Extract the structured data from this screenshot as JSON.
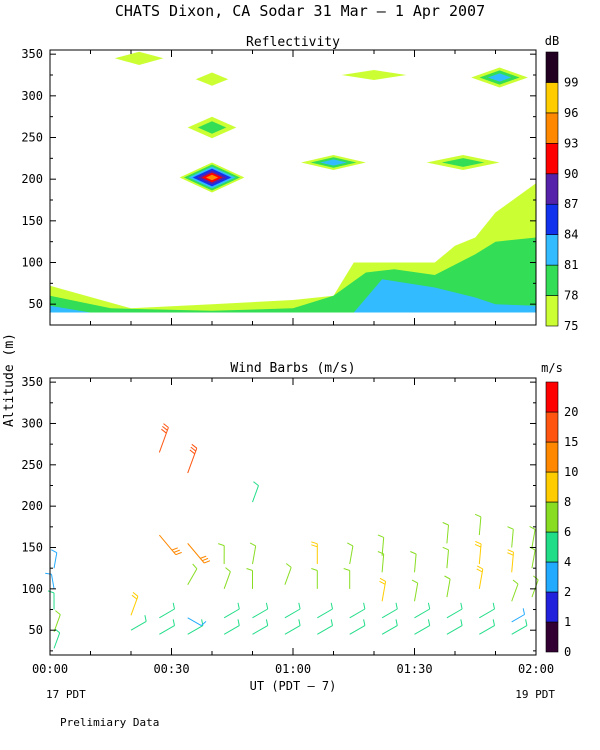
{
  "title": "CHATS Dixon, CA  Sodar  31 Mar –  1 Apr 2007",
  "footer_note": "Prelimiary Data",
  "xaxis": {
    "label": "UT  (PDT – 7)",
    "ticks": [
      "00:00",
      "00:30",
      "01:00",
      "01:30",
      "02:00"
    ],
    "tick_minutes": [
      0,
      30,
      60,
      90,
      120
    ],
    "range_minutes": [
      0,
      120
    ],
    "left_sub": "17 PDT",
    "right_sub": "19 PDT"
  },
  "yaxis": {
    "label": "Altitude  (m)"
  },
  "colors": {
    "refl_levels": [
      "#ccff33",
      "#33dd55",
      "#33bbff",
      "#1133ee",
      "#5522aa",
      "#ff0000",
      "#ff8800",
      "#ffcc00",
      "#220022"
    ],
    "wind_levels": [
      "#330033",
      "#2222dd",
      "#22aaff",
      "#22dd88",
      "#88dd22",
      "#ffcc00",
      "#ff8800",
      "#ff5511",
      "#ff0000"
    ]
  },
  "chart_data": [
    {
      "type": "heatmap",
      "title": "Reflectivity",
      "units": "dB",
      "ylim": [
        25,
        355
      ],
      "yticks": [
        50,
        100,
        150,
        200,
        250,
        300,
        350
      ],
      "colorbar_ticks": [
        "75",
        "78",
        "81",
        "84",
        "87",
        "90",
        "93",
        "96",
        "99"
      ],
      "colorbar_levels": [
        75,
        78,
        81,
        84,
        87,
        90,
        93,
        96,
        99
      ],
      "background_layers": [
        {
          "level": 75,
          "profile": [
            [
              0,
              72
            ],
            [
              20,
              45
            ],
            [
              40,
              50
            ],
            [
              60,
              55
            ],
            [
              70,
              60
            ],
            [
              75,
              100
            ],
            [
              80,
              100
            ],
            [
              85,
              100
            ],
            [
              90,
              100
            ],
            [
              95,
              100
            ],
            [
              100,
              120
            ],
            [
              105,
              130
            ],
            [
              110,
              160
            ],
            [
              120,
              195
            ],
            [
              120,
              40
            ],
            [
              0,
              40
            ]
          ]
        },
        {
          "level": 78,
          "profile": [
            [
              0,
              60
            ],
            [
              15,
              45
            ],
            [
              40,
              42
            ],
            [
              60,
              45
            ],
            [
              70,
              60
            ],
            [
              78,
              88
            ],
            [
              85,
              92
            ],
            [
              95,
              85
            ],
            [
              105,
              110
            ],
            [
              110,
              125
            ],
            [
              120,
              130
            ],
            [
              120,
              40
            ],
            [
              0,
              40
            ]
          ]
        },
        {
          "level": 81,
          "profile": [
            [
              0,
              48
            ],
            [
              10,
              40
            ],
            [
              75,
              40
            ],
            [
              82,
              80
            ],
            [
              95,
              70
            ],
            [
              105,
              58
            ],
            [
              110,
              50
            ],
            [
              120,
              48
            ],
            [
              120,
              40
            ],
            [
              0,
              40
            ]
          ]
        }
      ],
      "patches": [
        {
          "t": 40,
          "z": 202,
          "halfwidth": 8,
          "halfheight": 18,
          "levels": [
            75,
            78,
            81,
            84,
            87,
            90,
            93
          ]
        },
        {
          "t": 40,
          "z": 262,
          "halfwidth": 6,
          "halfheight": 13,
          "levels": [
            75,
            78
          ]
        },
        {
          "t": 70,
          "z": 220,
          "halfwidth": 8,
          "halfheight": 9,
          "levels": [
            75,
            78,
            81
          ]
        },
        {
          "t": 102,
          "z": 220,
          "halfwidth": 9,
          "halfheight": 9,
          "levels": [
            75,
            78
          ]
        },
        {
          "t": 111,
          "z": 322,
          "halfwidth": 7,
          "halfheight": 12,
          "levels": [
            75,
            78,
            81
          ]
        },
        {
          "t": 40,
          "z": 320,
          "halfwidth": 4,
          "halfheight": 8,
          "levels": [
            75
          ]
        },
        {
          "t": 80,
          "z": 325,
          "halfwidth": 8,
          "halfheight": 6,
          "levels": [
            75
          ]
        },
        {
          "t": 22,
          "z": 345,
          "halfwidth": 6,
          "halfheight": 8,
          "levels": [
            75
          ]
        }
      ]
    },
    {
      "type": "scatter",
      "title": "Wind Barbs (m/s)",
      "units": "m/s",
      "ylim": [
        20,
        355
      ],
      "yticks": [
        50,
        100,
        150,
        200,
        250,
        300,
        350
      ],
      "colorbar_ticks": [
        "0",
        "1",
        "2",
        "4",
        "6",
        "8",
        "10",
        "15",
        "20"
      ],
      "colorbar_levels": [
        0,
        1,
        2,
        4,
        6,
        8,
        10,
        15,
        20
      ],
      "barbs": [
        {
          "t": 1,
          "z": 28,
          "speed": 4,
          "dir": 200
        },
        {
          "t": 1,
          "z": 48,
          "speed": 6,
          "dir": 200
        },
        {
          "t": 1,
          "z": 75,
          "speed": 4,
          "dir": 180
        },
        {
          "t": 1,
          "z": 100,
          "speed": 2,
          "dir": 170
        },
        {
          "t": 1,
          "z": 125,
          "speed": 3,
          "dir": 190
        },
        {
          "t": 20,
          "z": 50,
          "speed": 5,
          "dir": 240
        },
        {
          "t": 20,
          "z": 68,
          "speed": 8,
          "dir": 200
        },
        {
          "t": 27,
          "z": 45,
          "speed": 5,
          "dir": 240
        },
        {
          "t": 27,
          "z": 65,
          "speed": 5,
          "dir": 240
        },
        {
          "t": 27,
          "z": 165,
          "speed": 14,
          "dir": 320
        },
        {
          "t": 27,
          "z": 265,
          "speed": 15,
          "dir": 200
        },
        {
          "t": 34,
          "z": 45,
          "speed": 5,
          "dir": 240
        },
        {
          "t": 34,
          "z": 65,
          "speed": 3,
          "dir": 300
        },
        {
          "t": 34,
          "z": 105,
          "speed": 6,
          "dir": 210
        },
        {
          "t": 34,
          "z": 155,
          "speed": 14,
          "dir": 320
        },
        {
          "t": 34,
          "z": 240,
          "speed": 15,
          "dir": 200
        },
        {
          "t": 43,
          "z": 45,
          "speed": 5,
          "dir": 240
        },
        {
          "t": 43,
          "z": 65,
          "speed": 5,
          "dir": 240
        },
        {
          "t": 43,
          "z": 100,
          "speed": 6,
          "dir": 200
        },
        {
          "t": 43,
          "z": 130,
          "speed": 6,
          "dir": 180
        },
        {
          "t": 50,
          "z": 45,
          "speed": 5,
          "dir": 240
        },
        {
          "t": 50,
          "z": 65,
          "speed": 5,
          "dir": 240
        },
        {
          "t": 50,
          "z": 100,
          "speed": 6,
          "dir": 180
        },
        {
          "t": 50,
          "z": 130,
          "speed": 6,
          "dir": 190
        },
        {
          "t": 50,
          "z": 205,
          "speed": 5,
          "dir": 200
        },
        {
          "t": 58,
          "z": 45,
          "speed": 5,
          "dir": 240
        },
        {
          "t": 58,
          "z": 65,
          "speed": 5,
          "dir": 240
        },
        {
          "t": 58,
          "z": 105,
          "speed": 6,
          "dir": 200
        },
        {
          "t": 66,
          "z": 45,
          "speed": 5,
          "dir": 240
        },
        {
          "t": 66,
          "z": 65,
          "speed": 5,
          "dir": 240
        },
        {
          "t": 66,
          "z": 100,
          "speed": 6,
          "dir": 180
        },
        {
          "t": 66,
          "z": 130,
          "speed": 8,
          "dir": 180
        },
        {
          "t": 74,
          "z": 45,
          "speed": 5,
          "dir": 240
        },
        {
          "t": 74,
          "z": 65,
          "speed": 5,
          "dir": 240
        },
        {
          "t": 74,
          "z": 100,
          "speed": 6,
          "dir": 180
        },
        {
          "t": 74,
          "z": 130,
          "speed": 6,
          "dir": 190
        },
        {
          "t": 82,
          "z": 45,
          "speed": 5,
          "dir": 240
        },
        {
          "t": 82,
          "z": 65,
          "speed": 5,
          "dir": 240
        },
        {
          "t": 82,
          "z": 85,
          "speed": 8,
          "dir": 190
        },
        {
          "t": 82,
          "z": 120,
          "speed": 6,
          "dir": 185
        },
        {
          "t": 82,
          "z": 140,
          "speed": 6,
          "dir": 185
        },
        {
          "t": 90,
          "z": 45,
          "speed": 5,
          "dir": 240
        },
        {
          "t": 90,
          "z": 65,
          "speed": 5,
          "dir": 240
        },
        {
          "t": 90,
          "z": 85,
          "speed": 6,
          "dir": 190
        },
        {
          "t": 90,
          "z": 120,
          "speed": 6,
          "dir": 185
        },
        {
          "t": 98,
          "z": 45,
          "speed": 5,
          "dir": 240
        },
        {
          "t": 98,
          "z": 65,
          "speed": 5,
          "dir": 240
        },
        {
          "t": 98,
          "z": 90,
          "speed": 6,
          "dir": 190
        },
        {
          "t": 98,
          "z": 125,
          "speed": 6,
          "dir": 185
        },
        {
          "t": 98,
          "z": 155,
          "speed": 6,
          "dir": 185
        },
        {
          "t": 106,
          "z": 45,
          "speed": 5,
          "dir": 240
        },
        {
          "t": 106,
          "z": 65,
          "speed": 5,
          "dir": 240
        },
        {
          "t": 106,
          "z": 100,
          "speed": 8,
          "dir": 190
        },
        {
          "t": 106,
          "z": 130,
          "speed": 8,
          "dir": 185
        },
        {
          "t": 106,
          "z": 165,
          "speed": 6,
          "dir": 185
        },
        {
          "t": 114,
          "z": 45,
          "speed": 5,
          "dir": 240
        },
        {
          "t": 114,
          "z": 60,
          "speed": 2,
          "dir": 240
        },
        {
          "t": 114,
          "z": 85,
          "speed": 6,
          "dir": 200
        },
        {
          "t": 114,
          "z": 120,
          "speed": 8,
          "dir": 185
        },
        {
          "t": 114,
          "z": 150,
          "speed": 6,
          "dir": 185
        },
        {
          "t": 119,
          "z": 90,
          "speed": 6,
          "dir": 200
        },
        {
          "t": 119,
          "z": 125,
          "speed": 6,
          "dir": 190
        },
        {
          "t": 119,
          "z": 150,
          "speed": 6,
          "dir": 190
        }
      ]
    }
  ]
}
